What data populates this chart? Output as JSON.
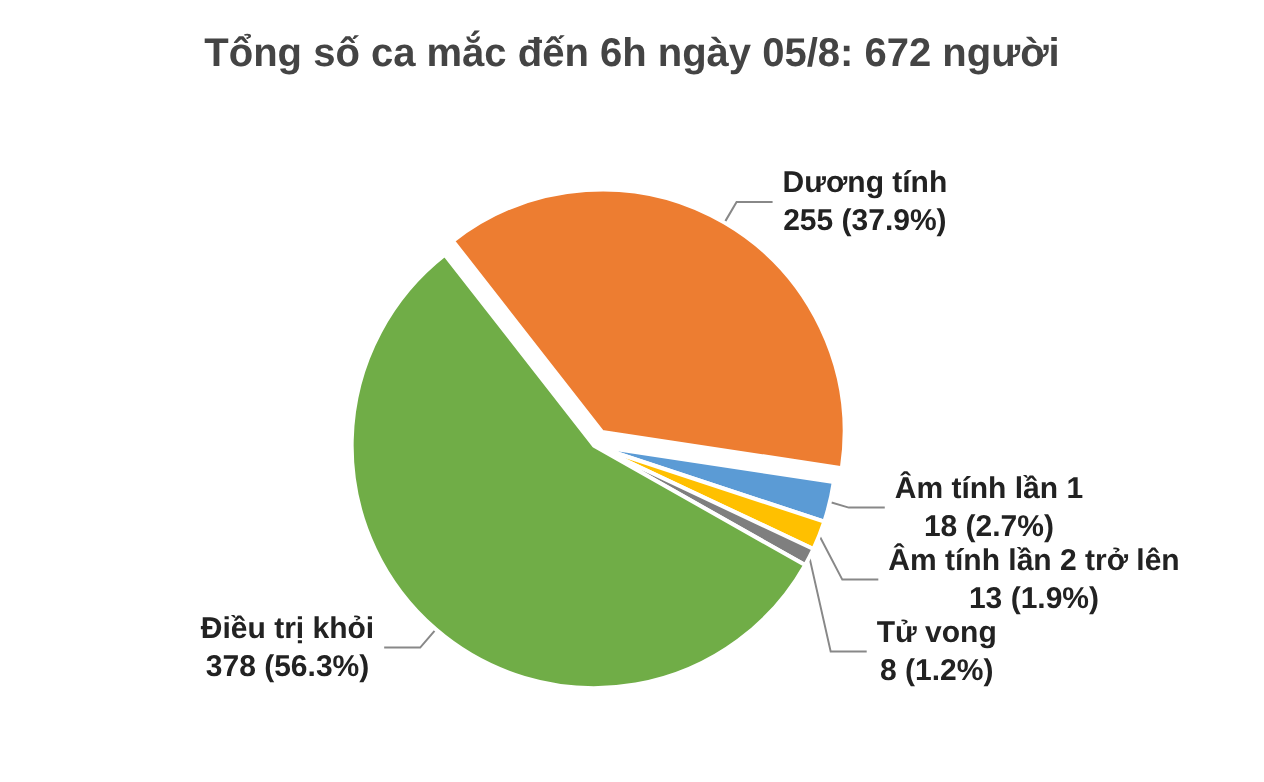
{
  "chart_data": {
    "type": "pie",
    "title": "Tổng số ca mắc đến 6h ngày 05/8: 672 người",
    "categories": [
      "Dương tính",
      "Âm tính lần 1",
      "Âm tính lần 2 trở lên",
      "Tử vong",
      "Điều trị khỏi"
    ],
    "values": [
      255,
      18,
      13,
      8,
      378
    ],
    "value_labels": [
      "255 (37.9%)",
      "18 (2.7%)",
      "13 (1.9%)",
      "8 (1.2%)",
      "378 (56.3%)"
    ],
    "colors": [
      "#ed7d31",
      "#5b9bd5",
      "#ffc000",
      "#7f7f7f",
      "#70ad47"
    ]
  }
}
